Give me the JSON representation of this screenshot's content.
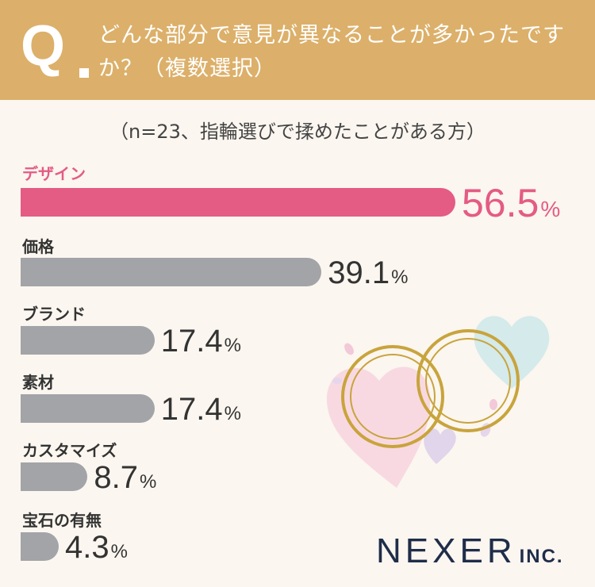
{
  "header": {
    "q_mark": "Q",
    "question": "どんな部分で意見が異なることが多かったですか？（複数選択）"
  },
  "subtitle": "（n=23、指輪選びで揉めたことがある方）",
  "colors": {
    "header_bg": "#dcb06a",
    "highlight": "#e45b84",
    "bar_gray": "#a3a4a8",
    "logo": "#1f2d4a"
  },
  "chart_data": {
    "type": "bar",
    "orientation": "horizontal",
    "categories": [
      "デザイン",
      "価格",
      "ブランド",
      "素材",
      "カスタマイズ",
      "宝石の有無"
    ],
    "values": [
      56.5,
      39.1,
      17.4,
      17.4,
      8.7,
      4.3
    ],
    "value_labels": [
      "56.5",
      "39.1",
      "17.4",
      "17.4",
      "8.7",
      "4.3"
    ],
    "unit": "%",
    "highlight_index": 0,
    "title": "どんな部分で意見が異なることが多かったですか？（複数選択）",
    "subtitle": "（n=23、指輪選びで揉めたことがある方）"
  },
  "logo": {
    "main": "NEXER",
    "sub": "INC."
  }
}
